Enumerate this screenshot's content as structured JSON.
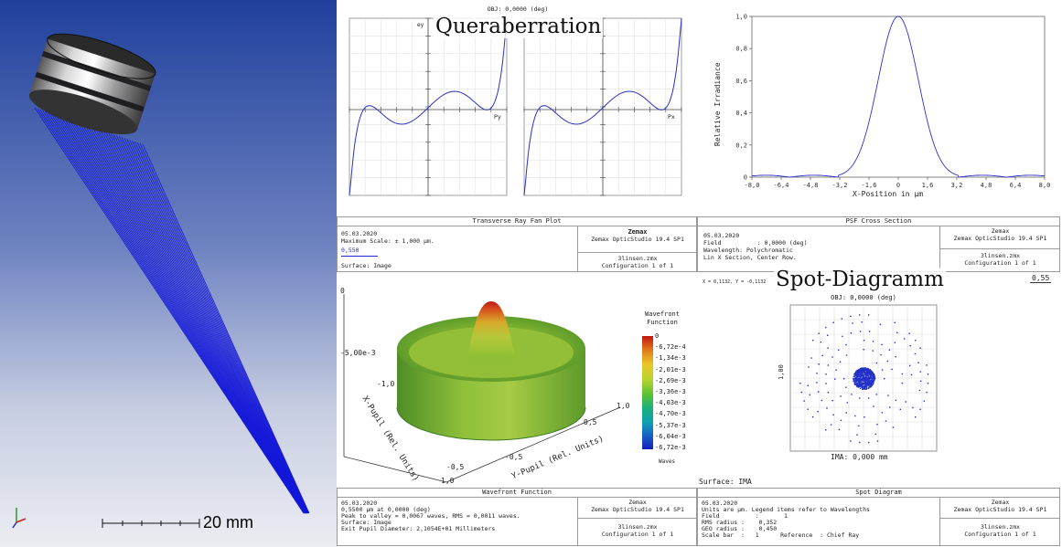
{
  "layout_view": {
    "scale_label": "20 mm",
    "rays": 42
  },
  "ray_fan": {
    "obj_label": "OBJ: 0,0000 (deg)",
    "overlay_title": "Queraberration",
    "ey_label": "ey",
    "ex_label": "ex",
    "py_label": "Py",
    "px_label": "Px",
    "title": "Transverse Ray Fan Plot",
    "date": "05.03.2020",
    "max_scale": "Maximum Scale: ± 1,000 µm.",
    "wavelength": "0,550",
    "surface": "Surface: Image",
    "brand": "Zemax",
    "product": "Zemax OpticStudio 19.4 SP1",
    "file": "3linsen.zmx",
    "config": "Configuration 1 of 1"
  },
  "psf": {
    "title": "PSF Cross Section",
    "ylabel": "Relative Irradiance",
    "xlabel": "X-Position in µm",
    "yticks": [
      "1,0",
      "0,8",
      "0,6",
      "0,4",
      "0,2",
      "0"
    ],
    "xticks": [
      "-8,0",
      "-6,4",
      "-4,8",
      "-3,2",
      "-1,6",
      "0",
      "1,6",
      "3,2",
      "4,8",
      "6,4",
      "8,0"
    ],
    "info_lines": [
      "05.03.2020",
      "Field          : 0,0000 (deg)",
      "Wavelength: Polychromatic",
      "Lin X Section, Center Row."
    ],
    "brand": "Zemax",
    "product": "Zemax OpticStudio 19.4 SP1",
    "file": "3linsen.zmx",
    "config": "Configuration 1 of 1",
    "coord_readout": "X = 0,1132, Y = -0,1132"
  },
  "wavefront": {
    "legend_title": "Wavefront Function",
    "legend_values": [
      "0",
      "-6,72e-4",
      "-1,34e-3",
      "-2,01e-3",
      "-2,69e-3",
      "-3,36e-3",
      "-4,03e-3",
      "-4,70e-3",
      "-5,37e-3",
      "-6,04e-3",
      "-6,72e-3"
    ],
    "legend_unit": "Waves",
    "axis_z_top": "0",
    "axis_z_mid": "-5,00e-3",
    "axis_x_label": "X-Pupil (Rel. Units)",
    "axis_y_label": "Y-Pupil (Rel. Units)",
    "tick_x1": "-1,0",
    "tick_x2": "-0,5",
    "tick_x3": "1,0",
    "tick_y1": "1,0",
    "tick_y2": "0,5",
    "tick_y3": "-0,5",
    "title": "Wavefront Function",
    "info_lines": [
      "05.03.2020",
      "0,5500 µm at 0,0000 (deg)",
      "Peak to valley = 0,0067 waves, RMS = 0,0011 waves.",
      "Surface: Image",
      "Exit Pupil Diameter: 2,1054E+01 Millimeters"
    ],
    "brand": "Zemax",
    "product": "Zemax OpticStudio 19.4 SP1",
    "file": "3linsen.zmx",
    "config": "Configuration 1 of 1"
  },
  "spot": {
    "overlay_title": "Spot-Diagramm",
    "obj_label": "OBJ: 0,0000 (deg)",
    "scale_value": "0,55",
    "side_label": "1,00",
    "ima_label": "IMA: 0,000 mm",
    "surface_label": "Surface: IMA",
    "title": "Spot Diagram",
    "info_lines": [
      "05.03.2020",
      "Units are µm. Legend items refer to Wavelengths",
      "Field          :       1",
      "RMS radius :    0,352",
      "GEO radius :    0,450",
      "Scale bar  :   1      Reference  : Chief Ray"
    ],
    "brand": "Zemax",
    "product": "Zemax OpticStudio 19.4 SP1",
    "file": "3linsen.zmx",
    "config": "Configuration 1 of 1"
  }
}
